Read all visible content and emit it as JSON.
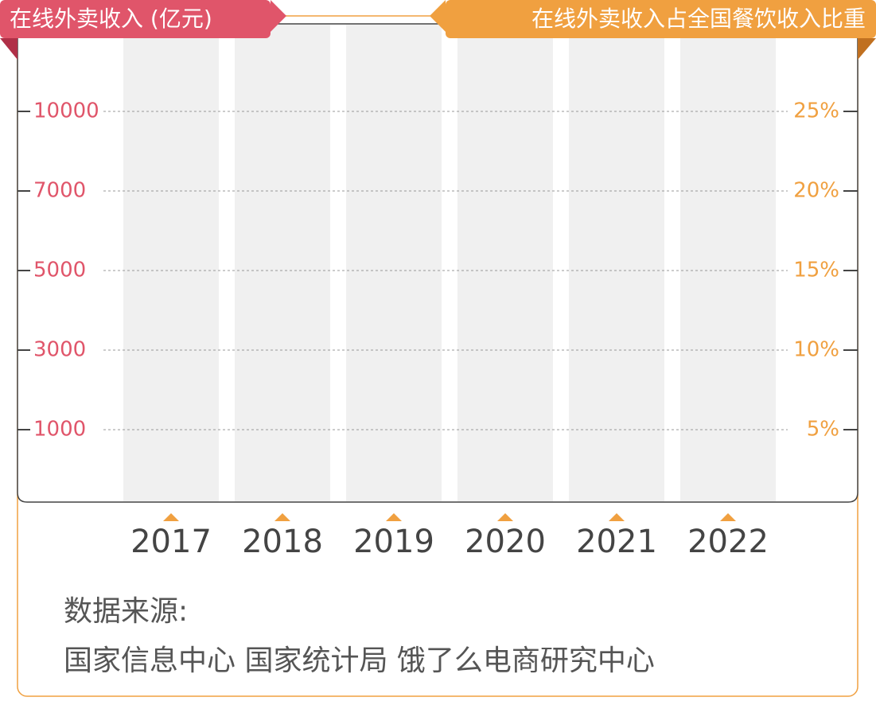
{
  "chart_data": {
    "type": "bar",
    "y_label": "在线外卖收入 (亿元)",
    "y2_label": "在线外卖收入占全国餐饮收入比重",
    "categories": [
      "2017",
      "2018",
      "2019",
      "2020",
      "2021",
      "2022"
    ],
    "yticks": [
      1000,
      3000,
      5000,
      7000,
      10000
    ],
    "y2lim": [
      0,
      30
    ],
    "y2ticks": [
      {
        "value": 5,
        "label": "5%"
      },
      {
        "value": 10,
        "label": "10%"
      },
      {
        "value": 15,
        "label": "15%"
      },
      {
        "value": 20,
        "label": "20%"
      },
      {
        "value": 25,
        "label": "25%"
      }
    ],
    "grid": true,
    "y_color": "#e0556a",
    "y2_color": "#f0a040",
    "source_label": "数据来源:",
    "source": "国家信息中心 国家统计局 饿了么电商研究中心"
  }
}
